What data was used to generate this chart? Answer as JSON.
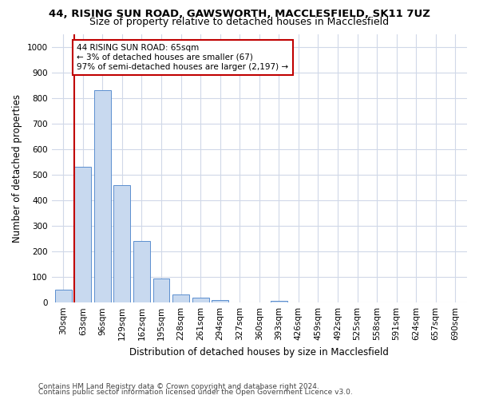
{
  "title_line1": "44, RISING SUN ROAD, GAWSWORTH, MACCLESFIELD, SK11 7UZ",
  "title_line2": "Size of property relative to detached houses in Macclesfield",
  "xlabel": "Distribution of detached houses by size in Macclesfield",
  "ylabel": "Number of detached properties",
  "categories": [
    "30sqm",
    "63sqm",
    "96sqm",
    "129sqm",
    "162sqm",
    "195sqm",
    "228sqm",
    "261sqm",
    "294sqm",
    "327sqm",
    "360sqm",
    "393sqm",
    "426sqm",
    "459sqm",
    "492sqm",
    "525sqm",
    "558sqm",
    "591sqm",
    "624sqm",
    "657sqm",
    "690sqm"
  ],
  "values": [
    50,
    530,
    830,
    460,
    240,
    95,
    33,
    20,
    10,
    0,
    0,
    8,
    0,
    0,
    0,
    0,
    0,
    0,
    0,
    0,
    0
  ],
  "bar_color": "#c8d9ef",
  "bar_edge_color": "#5b8fcf",
  "highlight_color": "#c00000",
  "annotation_line1": "44 RISING SUN ROAD: 65sqm",
  "annotation_line2": "← 3% of detached houses are smaller (67)",
  "annotation_line3": "97% of semi-detached houses are larger (2,197) →",
  "annotation_box_color": "#c00000",
  "ylim": [
    0,
    1050
  ],
  "yticks": [
    0,
    100,
    200,
    300,
    400,
    500,
    600,
    700,
    800,
    900,
    1000
  ],
  "grid_color": "#d0d8e8",
  "background_color": "#ffffff",
  "footer_line1": "Contains HM Land Registry data © Crown copyright and database right 2024.",
  "footer_line2": "Contains public sector information licensed under the Open Government Licence v3.0.",
  "title_fontsize": 9.5,
  "subtitle_fontsize": 9,
  "axis_label_fontsize": 8.5,
  "tick_fontsize": 7.5,
  "annotation_fontsize": 7.5,
  "footer_fontsize": 6.5
}
